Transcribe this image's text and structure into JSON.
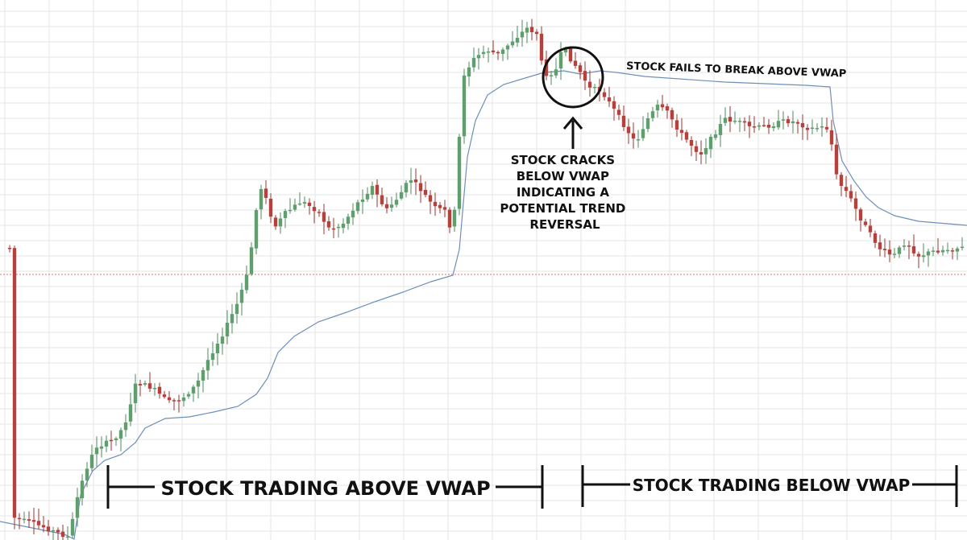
{
  "chart_data": {
    "type": "candlestick",
    "title": "",
    "xlabel": "",
    "ylabel": "",
    "grid": true,
    "colors": {
      "up": "#5f9f6e",
      "down": "#b5413c",
      "vwap": "#6f8fb7",
      "reference_line": "#d9746a",
      "grid": "#e6e6e6",
      "annotation": "#111111"
    },
    "annotations": {
      "fails_label": "STOCK FAILS TO BREAK ABOVE VWAP",
      "cracks_label": [
        "STOCK CRACKS",
        "BELOW VWAP",
        "INDICATING A",
        "POTENTIAL TREND",
        "REVERSAL"
      ],
      "above_label": "STOCK TRADING ABOVE VWAP",
      "below_label": "STOCK TRADING BELOW VWAP"
    }
  }
}
